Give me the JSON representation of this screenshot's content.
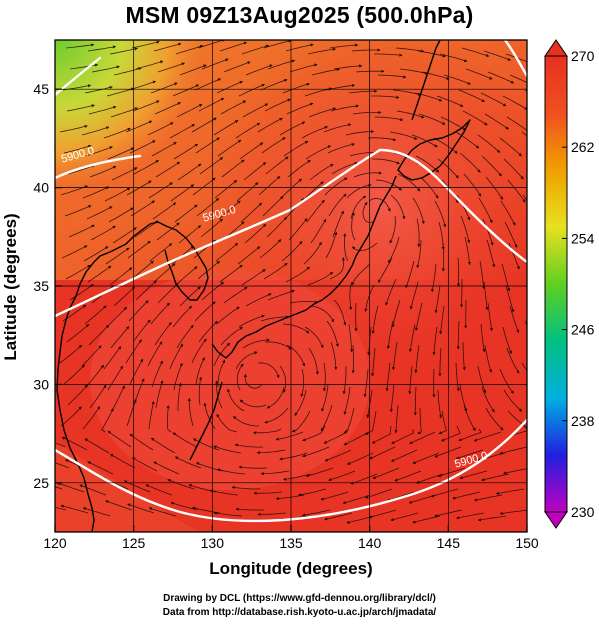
{
  "title": "MSM 09Z13Aug2025 (500.0hPa)",
  "x_axis": {
    "label": "Longitude (degrees)",
    "range": [
      120,
      150
    ],
    "ticks": [
      120,
      125,
      130,
      135,
      140,
      145,
      150
    ]
  },
  "y_axis": {
    "label": "Latitude  (degrees)",
    "range": [
      22.5,
      47.5
    ],
    "ticks": [
      25,
      30,
      35,
      40,
      45
    ]
  },
  "colorbar": {
    "range": [
      230,
      270
    ],
    "ticks": [
      230,
      238,
      246,
      254,
      262,
      270
    ],
    "colors": [
      "#c000c0",
      "#2020e0",
      "#00b0e0",
      "#00c080",
      "#60d020",
      "#e8e020",
      "#f0a000",
      "#f05020",
      "#e83020"
    ]
  },
  "contours": [
    {
      "label": "5900.0",
      "lon": 121.5,
      "lat": 41.5
    },
    {
      "label": "5900.0",
      "lon": 130.5,
      "lat": 38.5
    },
    {
      "label": "5900.0",
      "lon": 146.5,
      "lat": 26.0
    }
  ],
  "credits": [
    "Drawing by DCL (https://www.gfd-dennou.org/library/dcl/)",
    "Data from http://database.rish.kyoto-u.ac.jp/arch/jmadata/"
  ],
  "colors": {
    "field_main": "#e83424",
    "field_warm": "#f06030",
    "field_cool": "#f0a030",
    "field_green": "#70cc30",
    "contour": "#ffffff",
    "coast": "#000000"
  }
}
